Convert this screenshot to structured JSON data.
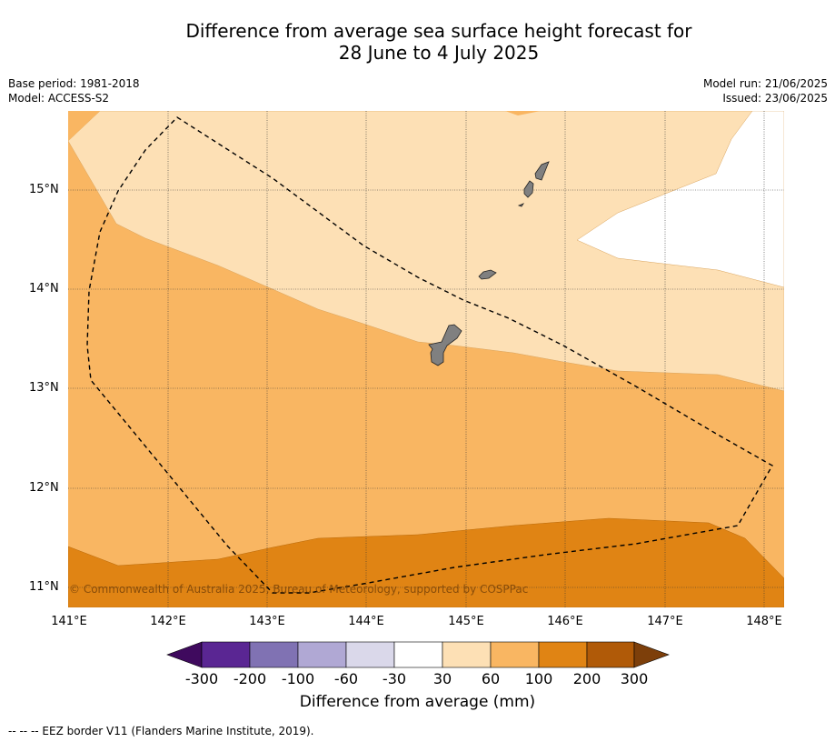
{
  "title": {
    "line1": "Difference from average sea surface height forecast for",
    "line2": "28 June to 4 July 2025"
  },
  "meta": {
    "base_period": "Base period: 1981-2018",
    "model": "Model: ACCESS-S2",
    "model_run": "Model run: 21/06/2025",
    "issued": "Issued: 23/06/2025"
  },
  "map": {
    "lat_labels": [
      "15°N",
      "14°N",
      "13°N",
      "12°N",
      "11°N"
    ],
    "lon_labels": [
      "141°E",
      "142°E",
      "143°E",
      "144°E",
      "145°E",
      "146°E",
      "147°E",
      "148°E"
    ],
    "lon_range": [
      141,
      148.2
    ],
    "lat_range": [
      10.8,
      15.8
    ],
    "gridlines": true,
    "land_color": "#808080",
    "copyright": "© Commonwealth of Australia 2025, Bureau of Meteorology, supported by COSPPac"
  },
  "colorbar": {
    "ticks": [
      "-300",
      "-200",
      "-100",
      "-60",
      "-30",
      "30",
      "60",
      "100",
      "200",
      "300"
    ],
    "colors": [
      "#3f0a5e",
      "#5a2693",
      "#8072b3",
      "#b0a8d4",
      "#dad8ea",
      "#ffffff",
      "#fde0b5",
      "#f9b662",
      "#e08414",
      "#b05a08",
      "#7d3f0a"
    ],
    "title": "Difference from average (mm)"
  },
  "footnote": "-- -- -- EEZ border V11 (Flanders Marine Institute, 2019)."
}
